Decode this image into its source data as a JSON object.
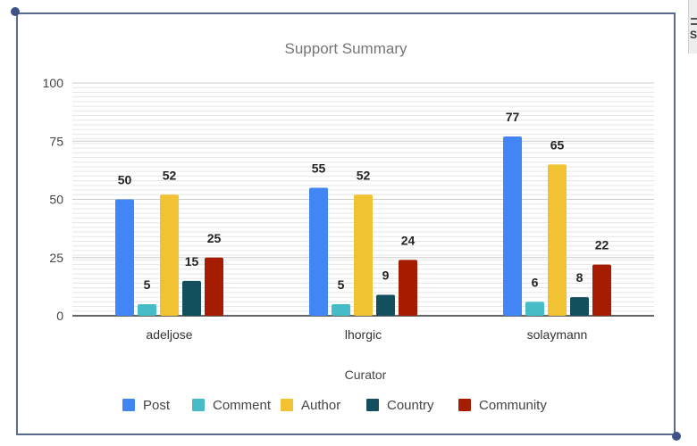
{
  "chart_data": {
    "type": "bar",
    "title": "Support Summary",
    "xlabel": "Curator",
    "ylabel": "",
    "ylim": [
      0,
      100
    ],
    "yticks": [
      0,
      25,
      50,
      75,
      100
    ],
    "categories": [
      "adeljose",
      "lhorgic",
      "solaymann"
    ],
    "legend_position": "bottom",
    "series": [
      {
        "name": "Post",
        "color": "#4285f4",
        "values": [
          50,
          55,
          77
        ]
      },
      {
        "name": "Comment",
        "color": "#46bdc6",
        "values": [
          5,
          5,
          6
        ]
      },
      {
        "name": "Author",
        "color": "#f1c232",
        "values": [
          52,
          52,
          65
        ]
      },
      {
        "name": "Country",
        "color": "#134f5c",
        "values": [
          15,
          9,
          8
        ]
      },
      {
        "name": "Community",
        "color": "#a61c00",
        "values": [
          25,
          24,
          22
        ]
      }
    ]
  },
  "edge": {
    "label": "S"
  }
}
